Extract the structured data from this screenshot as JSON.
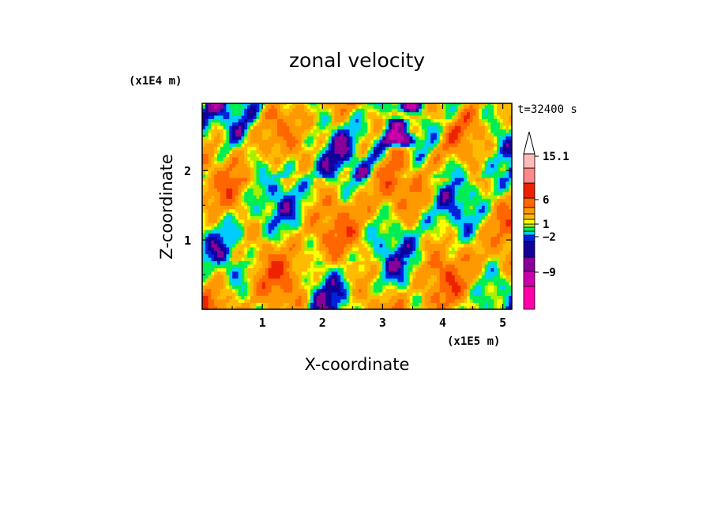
{
  "chart_data": {
    "type": "heatmap",
    "title": "zonal velocity",
    "xlabel": "X-coordinate",
    "ylabel": "Z-coordinate",
    "x_unit": "(x1E5 m)",
    "y_unit": "(x1E4 m)",
    "time_label": "t=32400 s",
    "x_ticks": [
      "1",
      "2",
      "3",
      "4",
      "5"
    ],
    "y_ticks": [
      "1",
      "2"
    ],
    "xlim": [
      0,
      5.15
    ],
    "ylim": [
      0,
      2.97
    ],
    "colorbar": {
      "labels": [
        "15.1",
        "6",
        "1",
        "-2",
        "-9"
      ],
      "colors": [
        "#ff00aa",
        "#cc00aa",
        "#880099",
        "#110099",
        "#0022dd",
        "#00ccff",
        "#00ee55",
        "#aaee00",
        "#ffff00",
        "#ffbb00",
        "#ff9900",
        "#ff6600",
        "#ee2200",
        "#ff8888",
        "#ffbbbb"
      ],
      "extend_max": true
    },
    "field_description_levels": [
      -12,
      -9,
      -6,
      -4,
      -3,
      -2,
      -1,
      0,
      0.5,
      1,
      2,
      4,
      6,
      9,
      12,
      15.1
    ]
  }
}
